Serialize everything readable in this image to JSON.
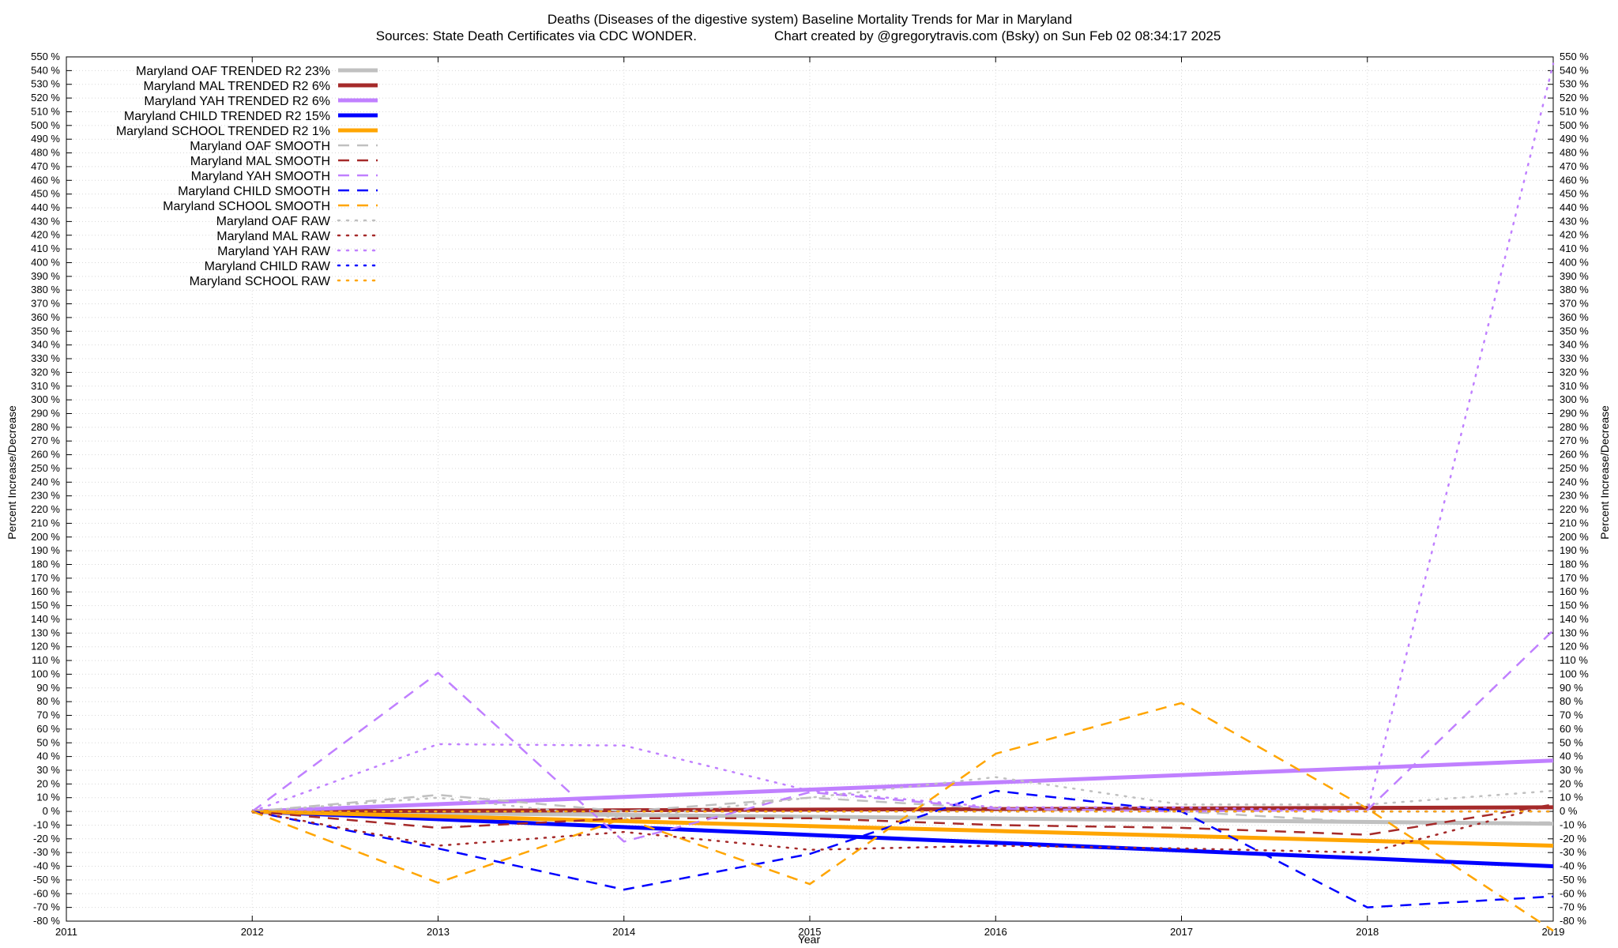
{
  "chart_data": {
    "type": "line",
    "title": "Deaths (Diseases of the digestive system)  Baseline Mortality Trends for Mar in Maryland",
    "subtitle_left": "Sources: State Death Certificates via CDC WONDER.",
    "subtitle_right": "Chart created by @gregorytravis.com (Bsky) on Sun Feb 02 08:34:17 2025",
    "xlabel": "Year",
    "ylabel": "Percent Increase/Decrease",
    "ylabel_right": "Percent Increase/Decrease",
    "xlim": [
      2011,
      2019
    ],
    "ylim": [
      -80,
      550
    ],
    "x_ticks": [
      "2011",
      "2012",
      "2013",
      "2014",
      "2015",
      "2016",
      "2017",
      "2018",
      "2019"
    ],
    "y_tick_suffix": " %",
    "y_tick_step": 10,
    "grid": true,
    "legend_position": "top-left",
    "series": [
      {
        "name": "Maryland OAF TRENDED R2  23%",
        "style": "solid",
        "color": "#c0c0c0",
        "width": 5,
        "x": [
          2012,
          2019
        ],
        "y": [
          0,
          -9
        ]
      },
      {
        "name": "Maryland MAL TRENDED R2  6%",
        "style": "solid",
        "color": "#a52a2a",
        "width": 5,
        "x": [
          2012,
          2019
        ],
        "y": [
          0,
          3
        ]
      },
      {
        "name": "Maryland YAH TRENDED R2  6%",
        "style": "solid",
        "color": "#c080ff",
        "width": 5,
        "x": [
          2012,
          2019
        ],
        "y": [
          0,
          37
        ]
      },
      {
        "name": "Maryland CHILD TRENDED R2  15%",
        "style": "solid",
        "color": "#0000ff",
        "width": 5,
        "x": [
          2012,
          2019
        ],
        "y": [
          0,
          -40
        ]
      },
      {
        "name": "Maryland SCHOOL TRENDED R2  1%",
        "style": "solid",
        "color": "#ffa500",
        "width": 5,
        "x": [
          2012,
          2019
        ],
        "y": [
          0,
          -25
        ]
      },
      {
        "name": "Maryland OAF SMOOTH",
        "style": "dash",
        "color": "#c0c0c0",
        "width": 2.5,
        "x": [
          2012,
          2013,
          2014,
          2015,
          2016,
          2017,
          2018,
          2019
        ],
        "y": [
          0,
          12,
          0,
          10,
          2,
          0,
          -8,
          -8
        ]
      },
      {
        "name": "Maryland MAL SMOOTH",
        "style": "dash",
        "color": "#a52a2a",
        "width": 2.5,
        "x": [
          2012,
          2013,
          2014,
          2015,
          2016,
          2017,
          2018,
          2019
        ],
        "y": [
          0,
          -12,
          -5,
          -5,
          -10,
          -12,
          -17,
          5
        ]
      },
      {
        "name": "Maryland YAH SMOOTH",
        "style": "dash",
        "color": "#c080ff",
        "width": 2.5,
        "x": [
          2012,
          2013,
          2014,
          2015,
          2016,
          2017,
          2018,
          2019
        ],
        "y": [
          0,
          101,
          -22,
          14,
          2,
          0,
          1,
          132
        ]
      },
      {
        "name": "Maryland CHILD SMOOTH",
        "style": "dash",
        "color": "#0000ff",
        "width": 2.5,
        "x": [
          2012,
          2013,
          2014,
          2015,
          2016,
          2017,
          2018,
          2019
        ],
        "y": [
          0,
          -27,
          -57,
          -31,
          15,
          0,
          -70,
          -62
        ]
      },
      {
        "name": "Maryland SCHOOL SMOOTH",
        "style": "dash",
        "color": "#ffa500",
        "width": 2.5,
        "x": [
          2012,
          2013,
          2014,
          2015,
          2016,
          2017,
          2018,
          2019
        ],
        "y": [
          0,
          -52,
          -5,
          -53,
          42,
          79,
          2,
          -87
        ]
      },
      {
        "name": "Maryland OAF RAW",
        "style": "dot",
        "color": "#c0c0c0",
        "width": 2.5,
        "x": [
          2012,
          2013,
          2014,
          2015,
          2016,
          2017,
          2018,
          2019
        ],
        "y": [
          0,
          10,
          -5,
          10,
          25,
          5,
          5,
          15
        ]
      },
      {
        "name": "Maryland MAL RAW",
        "style": "dot",
        "color": "#a52a2a",
        "width": 2.5,
        "x": [
          2012,
          2013,
          2014,
          2015,
          2016,
          2017,
          2018,
          2019
        ],
        "y": [
          0,
          -25,
          -15,
          -28,
          -25,
          -27,
          -30,
          5
        ]
      },
      {
        "name": "Maryland YAH RAW",
        "style": "dot",
        "color": "#c080ff",
        "width": 2.5,
        "x": [
          2012,
          2013,
          2014,
          2015,
          2016,
          2017,
          2018,
          2019
        ],
        "y": [
          0,
          49,
          48,
          15,
          3,
          3,
          0,
          545
        ]
      },
      {
        "name": "Maryland CHILD RAW",
        "style": "dot",
        "color": "#0000ff",
        "width": 2.5,
        "x": [
          2012,
          2013,
          2014,
          2015,
          2016,
          2017,
          2018,
          2019
        ],
        "y": [
          0,
          0,
          0,
          0,
          0,
          0,
          0,
          0
        ]
      },
      {
        "name": "Maryland SCHOOL RAW",
        "style": "dot",
        "color": "#ffa500",
        "width": 2.5,
        "x": [
          2012,
          2013,
          2014,
          2015,
          2016,
          2017,
          2018,
          2019
        ],
        "y": [
          0,
          0,
          0,
          0,
          0,
          0,
          0,
          0
        ]
      }
    ]
  }
}
